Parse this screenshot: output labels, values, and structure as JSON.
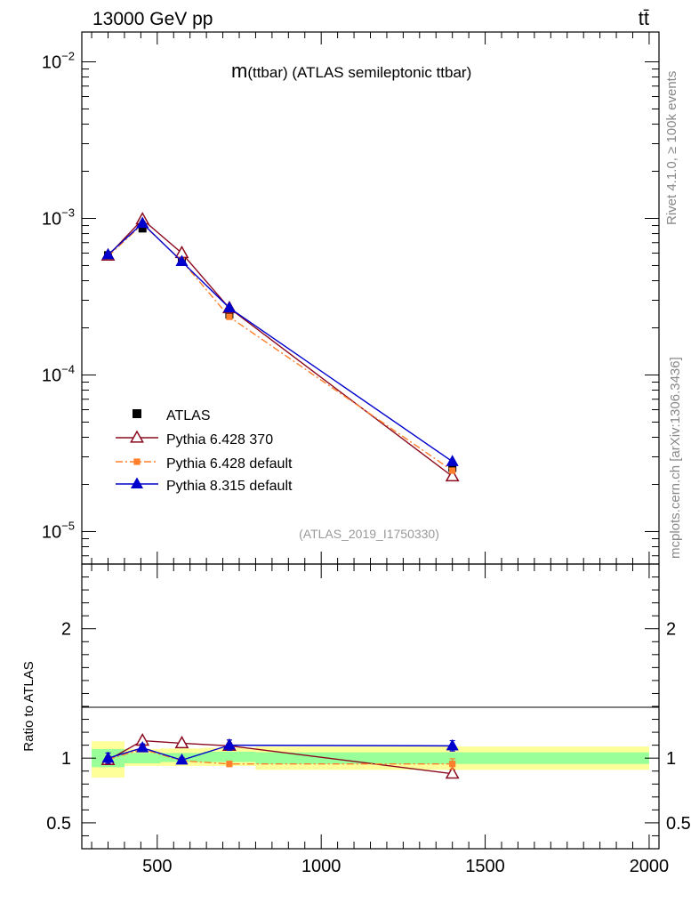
{
  "header": {
    "energy_label": "13000 GeV pp",
    "process_label": "tt̄"
  },
  "side_text": {
    "rivet": "Rivet 4.1.0, ≥ 100k events",
    "mcplots": "mcplots.cern.ch [arXiv:1306.3436]"
  },
  "colors": {
    "atlas": "#000000",
    "py6_370": "#8b0a1f",
    "py6_default": "#ff7f2a",
    "py8_default": "#0000cc",
    "band_inner": "#99ff99",
    "band_outer": "#ffff99"
  },
  "chart_data": [
    {
      "type": "line",
      "title": "m(ttbar) (ATLAS semileptonic ttbar)",
      "title_main": "m",
      "title_rest": "(ttbar) (ATLAS semileptonic ttbar)",
      "watermark": "(ATLAS_2019_I1750330)",
      "xlabel": "",
      "ylabel": "",
      "yscale": "log",
      "xlim": [
        270,
        2030
      ],
      "ylim": [
        6.2e-06,
        0.0155
      ],
      "y_major_ticks": [
        1e-05,
        0.0001,
        0.001,
        0.01
      ],
      "y_tick_labels": [
        {
          "base": "10",
          "exp": "−5"
        },
        {
          "base": "10",
          "exp": "−4"
        },
        {
          "base": "10",
          "exp": "−3"
        },
        {
          "base": "10",
          "exp": "−2"
        }
      ],
      "x": [
        350,
        455,
        575,
        720,
        1400
      ],
      "x_err": [
        [
          300,
          400
        ],
        [
          400,
          510
        ],
        [
          510,
          640
        ],
        [
          640,
          800
        ],
        [
          800,
          2000
        ]
      ],
      "series": [
        {
          "name": "ATLAS",
          "marker": "square",
          "values": [
            0.000582,
            0.000862,
            0.000548,
            0.000243,
            2.55e-05
          ]
        },
        {
          "name": "Pythia 6.428 370",
          "marker": "triangle-open",
          "line": "solid",
          "values": [
            0.000578,
            0.000985,
            0.0006,
            0.000267,
            2.25e-05
          ]
        },
        {
          "name": "Pythia 6.428 default",
          "marker": "square-small",
          "line": "dashdot",
          "values": [
            0.000573,
            0.00092,
            0.000535,
            0.000235,
            2.45e-05
          ]
        },
        {
          "name": "Pythia 8.315 default",
          "marker": "triangle-filled",
          "line": "solid",
          "values": [
            0.000586,
            0.00093,
            0.00053,
            0.000268,
            2.8e-05
          ]
        }
      ]
    },
    {
      "type": "line",
      "title": "",
      "xlabel": "",
      "ylabel": "Ratio to ATLAS",
      "xlim": [
        270,
        2030
      ],
      "ylim": [
        0.3,
        2.5
      ],
      "x_ticks": [
        500,
        1000,
        1500,
        2000
      ],
      "x_tick_labels": [
        "500",
        "1000",
        "1500",
        "2000"
      ],
      "y_ticks": [
        0.5,
        1,
        2
      ],
      "y_tick_labels": [
        "0.5",
        "1",
        "2"
      ],
      "bands": {
        "edges": [
          [
            300,
            400
          ],
          [
            400,
            510
          ],
          [
            510,
            640
          ],
          [
            640,
            800
          ],
          [
            800,
            2000
          ]
        ],
        "inner": [
          [
            0.93,
            1.07
          ],
          [
            0.96,
            1.04
          ],
          [
            0.97,
            1.04
          ],
          [
            0.97,
            1.05
          ],
          [
            0.955,
            1.045
          ]
        ],
        "outer": [
          [
            0.85,
            1.13
          ],
          [
            0.94,
            1.07
          ],
          [
            0.94,
            1.075
          ],
          [
            0.94,
            1.08
          ],
          [
            0.91,
            1.09
          ]
        ]
      },
      "x": [
        350,
        455,
        575,
        720,
        1400
      ],
      "series": [
        {
          "name": "Pythia 6.428 370",
          "values": [
            0.985,
            1.135,
            1.115,
            1.095,
            0.88
          ],
          "err": [
            0.03,
            0.015,
            0.02,
            0.02,
            0.03
          ]
        },
        {
          "name": "Pythia 6.428 default",
          "values": [
            0.99,
            1.07,
            0.98,
            0.955,
            0.955
          ],
          "err": [
            0.02,
            0.015,
            0.02,
            0.02,
            0.04
          ]
        },
        {
          "name": "Pythia 8.315 default",
          "values": [
            1.0,
            1.08,
            0.985,
            1.1,
            1.095
          ],
          "err": [
            0.04,
            0.03,
            0.02,
            0.04,
            0.04
          ]
        }
      ]
    }
  ]
}
